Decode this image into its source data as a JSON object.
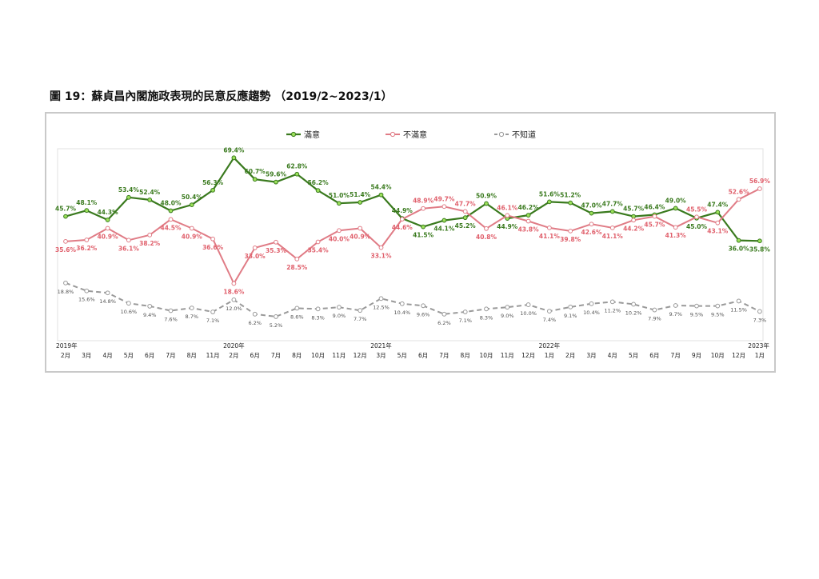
{
  "title": "圖 19：蘇貞昌內閣施政表現的民意反應趨勢 （2019/2~2023/1）",
  "colors": {
    "satisfied": "#3a7a1e",
    "unsatisfied": "#e07c86",
    "unknown": "#9a9a9a",
    "marker_sat": "#9be05a"
  },
  "chart_data": {
    "type": "line",
    "title": "",
    "xlabel": "",
    "ylabel": "",
    "legend_position": "top-center",
    "grid": false,
    "ylim": [
      0,
      75
    ],
    "categories": [
      "2月",
      "3月",
      "4月",
      "5月",
      "6月",
      "7月",
      "8月",
      "11月",
      "2月",
      "6月",
      "7月",
      "8月",
      "10月",
      "11月",
      "12月",
      "3月",
      "5月",
      "6月",
      "7月",
      "8月",
      "10月",
      "11月",
      "12月",
      "1月",
      "2月",
      "3月",
      "4月",
      "5月",
      "6月",
      "7月",
      "9月",
      "10月",
      "12月",
      "1月"
    ],
    "year_labels": [
      {
        "index": 0,
        "label": "2019年"
      },
      {
        "index": 8,
        "label": "2020年"
      },
      {
        "index": 15,
        "label": "2021年"
      },
      {
        "index": 23,
        "label": "2022年"
      },
      {
        "index": 33,
        "label": "2023年"
      }
    ],
    "series": [
      {
        "name": "滿意",
        "key": "satisfied",
        "values": [
          45.7,
          48.1,
          44.3,
          53.4,
          52.4,
          48.0,
          50.4,
          56.3,
          69.4,
          60.7,
          59.6,
          62.8,
          56.2,
          51.0,
          51.4,
          54.4,
          44.9,
          41.5,
          44.1,
          45.2,
          50.9,
          44.9,
          46.2,
          51.6,
          51.2,
          47.0,
          47.7,
          45.7,
          46.4,
          49.0,
          45.0,
          47.4,
          36.0,
          35.8
        ]
      },
      {
        "name": "不滿意",
        "key": "unsatisfied",
        "values": [
          35.6,
          36.2,
          40.9,
          36.1,
          38.2,
          44.5,
          40.9,
          36.6,
          18.6,
          33.0,
          35.3,
          28.5,
          35.4,
          40.0,
          40.9,
          33.1,
          44.6,
          48.9,
          49.7,
          47.7,
          40.8,
          46.1,
          43.8,
          41.1,
          39.8,
          42.6,
          41.1,
          44.2,
          45.7,
          41.3,
          45.5,
          43.1,
          52.6,
          56.9
        ]
      },
      {
        "name": "不知道",
        "key": "unknown",
        "values": [
          18.8,
          15.6,
          14.8,
          10.6,
          9.4,
          7.6,
          8.7,
          7.1,
          12.0,
          6.2,
          5.2,
          8.6,
          8.3,
          9.0,
          7.7,
          12.5,
          10.4,
          9.6,
          6.2,
          7.1,
          8.3,
          9.0,
          10.0,
          7.4,
          9.1,
          10.4,
          11.2,
          10.2,
          7.9,
          9.7,
          9.5,
          9.5,
          11.5,
          7.3
        ]
      }
    ]
  }
}
